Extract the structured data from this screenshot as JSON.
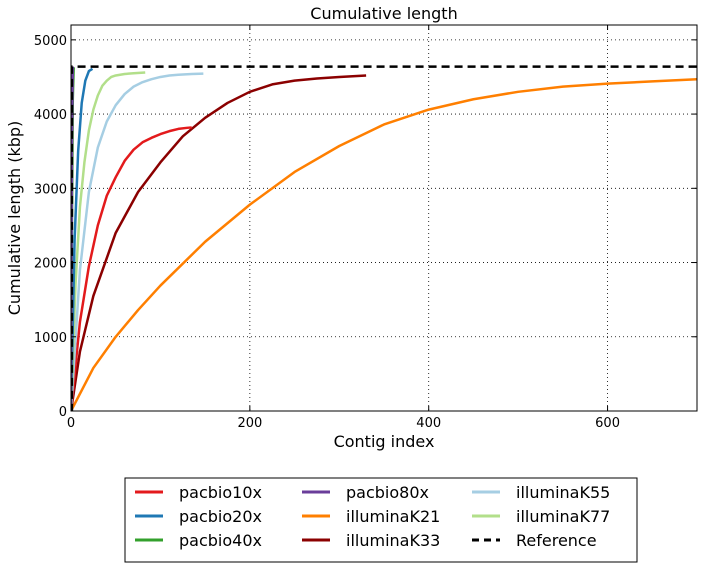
{
  "chart_data": {
    "type": "line",
    "title": "Cumulative length",
    "xlabel": "Contig index",
    "ylabel": "Cumulative length (kbp)",
    "xlim": [
      0,
      700
    ],
    "ylim": [
      0,
      5200
    ],
    "xticks": [
      0,
      200,
      400,
      600
    ],
    "yticks": [
      0,
      1000,
      2000,
      3000,
      4000,
      5000
    ],
    "grid": true,
    "legend_position": "bottom",
    "series": [
      {
        "name": "pacbio10x",
        "color": "#e31a1c",
        "dash": "",
        "x": [
          0,
          10,
          20,
          30,
          40,
          50,
          60,
          70,
          80,
          90,
          100,
          110,
          120,
          130,
          135
        ],
        "y": [
          0,
          1200,
          1950,
          2500,
          2900,
          3150,
          3370,
          3520,
          3620,
          3680,
          3730,
          3770,
          3800,
          3815,
          3820
        ]
      },
      {
        "name": "pacbio20x",
        "color": "#1f78b4",
        "dash": "",
        "x": [
          0,
          4,
          8,
          12,
          16,
          20,
          24
        ],
        "y": [
          0,
          2300,
          3500,
          4150,
          4450,
          4580,
          4610
        ]
      },
      {
        "name": "pacbio40x",
        "color": "#33a02c",
        "dash": "",
        "x": [
          0,
          1,
          2,
          3
        ],
        "y": [
          0,
          2500,
          4200,
          4630
        ]
      },
      {
        "name": "pacbio80x",
        "color": "#6a3d9a",
        "dash": "",
        "x": [
          0,
          1,
          2
        ],
        "y": [
          0,
          3500,
          4640
        ]
      },
      {
        "name": "illuminaK21",
        "color": "#ff7f00",
        "dash": "",
        "x": [
          0,
          25,
          50,
          75,
          100,
          150,
          200,
          250,
          300,
          350,
          400,
          450,
          500,
          550,
          600,
          650,
          700
        ],
        "y": [
          0,
          580,
          1000,
          1360,
          1690,
          2280,
          2780,
          3220,
          3570,
          3860,
          4060,
          4200,
          4300,
          4370,
          4410,
          4440,
          4470
        ]
      },
      {
        "name": "illuminaK33",
        "color": "#8b0000",
        "dash": "",
        "x": [
          0,
          10,
          25,
          50,
          75,
          100,
          125,
          150,
          175,
          200,
          225,
          250,
          275,
          300,
          330
        ],
        "y": [
          0,
          800,
          1550,
          2400,
          2950,
          3350,
          3700,
          3950,
          4150,
          4300,
          4400,
          4450,
          4480,
          4500,
          4520
        ]
      },
      {
        "name": "illuminaK55",
        "color": "#a6cee3",
        "dash": "",
        "x": [
          0,
          10,
          20,
          30,
          40,
          50,
          60,
          70,
          80,
          90,
          100,
          110,
          120,
          135,
          148
        ],
        "y": [
          0,
          1900,
          2950,
          3550,
          3900,
          4120,
          4270,
          4370,
          4430,
          4470,
          4500,
          4520,
          4530,
          4540,
          4545
        ]
      },
      {
        "name": "illuminaK77",
        "color": "#b2df8a",
        "dash": "",
        "x": [
          0,
          5,
          10,
          15,
          20,
          25,
          30,
          35,
          40,
          45,
          50,
          60,
          70,
          83
        ],
        "y": [
          0,
          1700,
          2750,
          3350,
          3780,
          4060,
          4250,
          4380,
          4450,
          4500,
          4520,
          4540,
          4550,
          4560
        ]
      },
      {
        "name": "Reference",
        "color": "#000000",
        "dash": "8,5",
        "x": [
          0,
          1,
          1,
          700
        ],
        "y": [
          0,
          0,
          4640,
          4640
        ]
      }
    ]
  }
}
